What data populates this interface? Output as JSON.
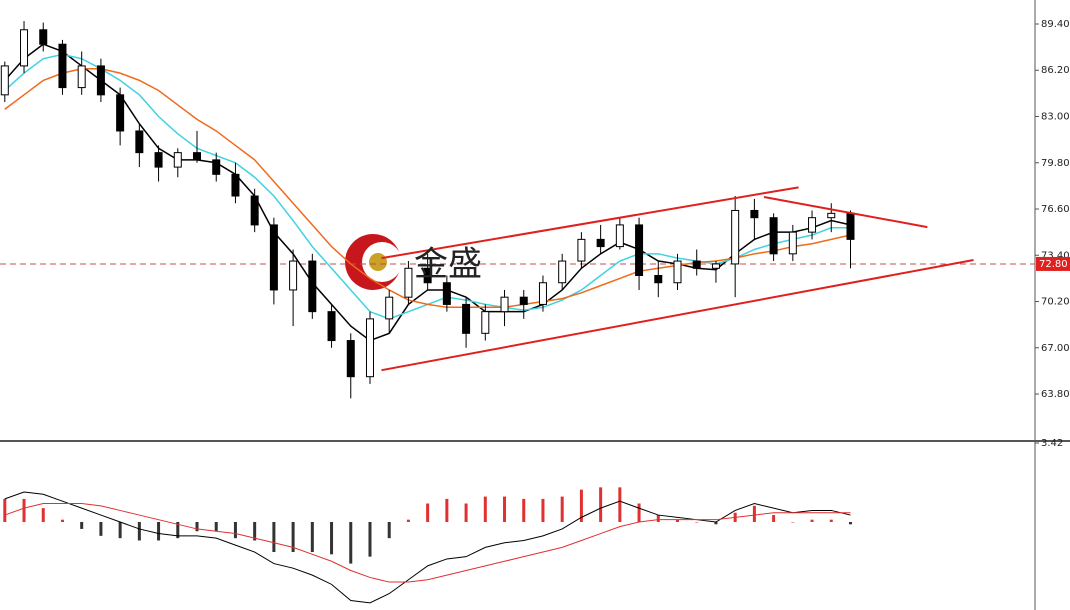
{
  "chart_data": [
    {
      "type": "candlestick",
      "xlim": [
        -0.25,
        53.6
      ],
      "ylim": [
        60.62,
        91.06
      ],
      "yticks": [
        {
          "value": 89.4,
          "label": "89.40"
        },
        {
          "value": 86.2,
          "label": "86.20"
        },
        {
          "value": 83.0,
          "label": "83.00"
        },
        {
          "value": 79.8,
          "label": "79.80"
        },
        {
          "value": 76.6,
          "label": "76.60"
        },
        {
          "value": 73.4,
          "label": "73.40"
        },
        {
          "value": 70.2,
          "label": "70.20"
        },
        {
          "value": 67.0,
          "label": "67.00"
        },
        {
          "value": 63.8,
          "label": "63.80"
        }
      ],
      "open": [
        84.5,
        86.5,
        89,
        88,
        85,
        86.5,
        84.5,
        82,
        80.5,
        79.5,
        80.5,
        80,
        79,
        77.5,
        75.5,
        71,
        73,
        69.5,
        67.5,
        65,
        69,
        70.5,
        72.5,
        71.5,
        70,
        68,
        69.5,
        70.5,
        70,
        71.5,
        73,
        74.5,
        74,
        75.5,
        72,
        71.5,
        73,
        72.5,
        72.8,
        76.5,
        76,
        73.5,
        75,
        76,
        76.3
      ],
      "high": [
        86.8,
        89.6,
        89.5,
        88.3,
        87.5,
        87,
        85,
        82.5,
        81,
        80.8,
        82,
        80.5,
        79.8,
        78,
        76,
        73.8,
        73.5,
        70,
        68,
        69.5,
        71,
        73,
        73.5,
        72,
        70.5,
        70,
        71,
        71,
        72,
        73.5,
        75,
        75.5,
        76,
        76,
        73,
        73.5,
        73.8,
        73,
        77.5,
        77.3,
        76.3,
        75.5,
        76.5,
        77,
        76.5
      ],
      "low": [
        84,
        86,
        87.5,
        84.5,
        84.5,
        84,
        81,
        79.5,
        78.5,
        78.8,
        79.8,
        78.5,
        77,
        75,
        70,
        68.5,
        69,
        67,
        63.5,
        64.5,
        68,
        70,
        71,
        69.5,
        67,
        67.5,
        68.5,
        69,
        69.5,
        71,
        72.5,
        73.5,
        73.8,
        71,
        70.5,
        71,
        72,
        71.5,
        70.5,
        74.5,
        73,
        73,
        74.5,
        75,
        72.5
      ],
      "close": [
        86.5,
        89,
        88,
        85,
        86.5,
        84.5,
        82,
        80.5,
        79.5,
        80.5,
        80,
        79,
        77.5,
        75.5,
        71,
        73,
        69.5,
        67.5,
        65,
        69,
        70.5,
        72.5,
        71.5,
        70,
        68,
        69.5,
        70.5,
        70,
        71.5,
        73,
        74.5,
        74,
        75.5,
        72,
        71.5,
        73,
        72.5,
        72.8,
        76.5,
        76,
        73.5,
        75,
        76,
        76.3,
        74.5
      ],
      "up_color": "#ffffff",
      "down_color": "#000000",
      "series": [
        {
          "color": "#000000",
          "values": [
            85.5,
            87,
            88,
            87.5,
            86.5,
            85.5,
            84.5,
            82.5,
            80.8,
            80,
            80,
            79.8,
            79,
            77.5,
            75,
            73.5,
            71.5,
            70,
            68.5,
            67.5,
            68,
            70,
            71,
            71,
            70.5,
            69.5,
            69.5,
            69.5,
            70,
            71,
            72.5,
            73.5,
            74.3,
            73.8,
            73,
            72.8,
            72.5,
            72.4,
            73.5,
            74.5,
            75,
            75,
            75.3,
            75.8,
            75.5
          ]
        },
        {
          "color": "#3fd3e0",
          "values": [
            84.8,
            86,
            87,
            87.3,
            87,
            86.3,
            85.5,
            84.5,
            83,
            81.8,
            80.8,
            80.3,
            79.8,
            78.8,
            77.5,
            75.8,
            74,
            72.5,
            71,
            69.5,
            69,
            69.5,
            70,
            70.5,
            70.3,
            70,
            69.8,
            69.6,
            69.8,
            70.3,
            71,
            72,
            73,
            73.5,
            73.5,
            73.2,
            73,
            72.8,
            73.2,
            73.8,
            74.2,
            74.5,
            74.8,
            75.3,
            75.3
          ]
        },
        {
          "color": "#f06a1e",
          "values": [
            83.5,
            84.5,
            85.5,
            86,
            86.3,
            86.3,
            86,
            85.5,
            84.8,
            83.8,
            82.8,
            82,
            81,
            80,
            78.5,
            77,
            75.5,
            74,
            72.8,
            71.8,
            71,
            70.3,
            70,
            69.8,
            69.8,
            69.8,
            69.8,
            70,
            70.2,
            70.4,
            70.8,
            71.3,
            71.8,
            72.3,
            72.5,
            72.7,
            72.9,
            73,
            73.2,
            73.5,
            73.7,
            74,
            74.2,
            74.5,
            74.8
          ]
        }
      ],
      "trend_lines": [
        {
          "color": "#e0201e",
          "x": [
            19.6,
            41.3
          ],
          "y": [
            73.2,
            78.1
          ]
        },
        {
          "color": "#e0201e",
          "x": [
            19.6,
            50.4
          ],
          "y": [
            65.45,
            73.07
          ]
        },
        {
          "color": "#e0201e",
          "x": [
            39.5,
            48.0
          ],
          "y": [
            77.43,
            75.35
          ]
        }
      ],
      "price_line": {
        "value": 72.8,
        "label": "72.80",
        "color": "#c0504d"
      },
      "logo_text": "金盛"
    },
    {
      "type": "macd",
      "xlim": [
        -0.25,
        53.6
      ],
      "ylim": [
        -3.81,
        3.42
      ],
      "yticks": [
        {
          "value": 3.42,
          "label": "3.42"
        }
      ],
      "pos_color": "#e03030",
      "neg_color": "#333333",
      "histogram": [
        1.0,
        1.0,
        0.6,
        0.1,
        -0.3,
        -0.6,
        -0.7,
        -0.8,
        -0.8,
        -0.7,
        -0.4,
        -0.4,
        -0.7,
        -0.8,
        -1.3,
        -1.3,
        -1.3,
        -1.4,
        -1.8,
        -1.5,
        -0.7,
        0.1,
        0.8,
        1.0,
        0.8,
        1.1,
        1.1,
        1.0,
        1.0,
        1.1,
        1.4,
        1.5,
        1.5,
        0.8,
        0.3,
        0.1,
        0,
        -0.1,
        0.4,
        0.7,
        0.3,
        0,
        0.1,
        0.1,
        -0.1
      ],
      "series": [
        {
          "color": "#000000",
          "values": [
            1.0,
            1.3,
            1.2,
            0.9,
            0.6,
            0.3,
            0.0,
            -0.3,
            -0.5,
            -0.6,
            -0.6,
            -0.7,
            -1.0,
            -1.3,
            -1.8,
            -2.0,
            -2.3,
            -2.7,
            -3.4,
            -3.5,
            -3.1,
            -2.5,
            -1.9,
            -1.6,
            -1.5,
            -1.1,
            -0.9,
            -0.8,
            -0.6,
            -0.3,
            0.2,
            0.6,
            0.9,
            0.6,
            0.3,
            0.2,
            0.1,
            0.0,
            0.5,
            0.8,
            0.6,
            0.4,
            0.5,
            0.5,
            0.3
          ]
        },
        {
          "color": "#e03030",
          "values": [
            0.3,
            0.6,
            0.8,
            0.8,
            0.8,
            0.7,
            0.5,
            0.3,
            0.1,
            -0.1,
            -0.3,
            -0.4,
            -0.5,
            -0.7,
            -0.9,
            -1.1,
            -1.4,
            -1.7,
            -2.1,
            -2.4,
            -2.6,
            -2.6,
            -2.5,
            -2.3,
            -2.1,
            -1.9,
            -1.7,
            -1.5,
            -1.3,
            -1.1,
            -0.8,
            -0.5,
            -0.2,
            0.0,
            0.1,
            0.1,
            0.1,
            0.1,
            0.2,
            0.3,
            0.4,
            0.4,
            0.4,
            0.4,
            0.4
          ]
        }
      ]
    }
  ]
}
